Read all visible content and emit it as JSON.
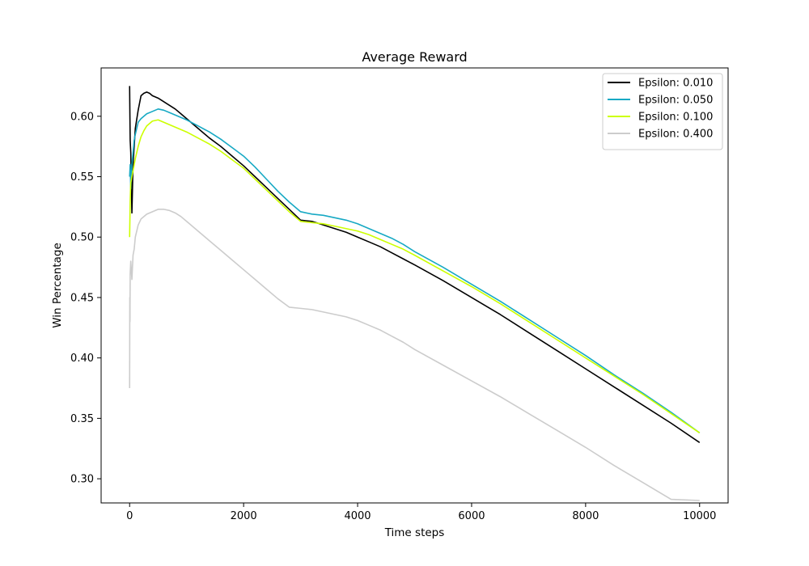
{
  "chart_data": {
    "type": "line",
    "title": "Average Reward",
    "xlabel": "Time steps",
    "ylabel": "Win Percentage",
    "xlim": [
      -500,
      10500
    ],
    "ylim": [
      0.28,
      0.64
    ],
    "xticks": [
      0,
      2000,
      4000,
      6000,
      8000,
      10000
    ],
    "xtick_labels": [
      "0",
      "2000",
      "4000",
      "6000",
      "8000",
      "10000"
    ],
    "yticks": [
      0.3,
      0.35,
      0.4,
      0.45,
      0.5,
      0.55,
      0.6
    ],
    "ytick_labels": [
      "0.30",
      "0.35",
      "0.40",
      "0.45",
      "0.50",
      "0.55",
      "0.60"
    ],
    "grid": false,
    "legend_position": "top-right",
    "series": [
      {
        "name": "Epsilon: 0.010",
        "color": "#000000",
        "x": [
          0,
          5,
          10,
          20,
          40,
          60,
          80,
          100,
          150,
          200,
          250,
          300,
          350,
          400,
          500,
          600,
          700,
          800,
          900,
          1000,
          1200,
          1400,
          1600,
          1800,
          2000,
          2200,
          2400,
          2600,
          2800,
          3000,
          3200,
          3400,
          3600,
          3800,
          4000,
          4200,
          4400,
          4600,
          4800,
          5000,
          5500,
          6000,
          6500,
          7000,
          7500,
          8000,
          8500,
          9000,
          9500,
          10000
        ],
        "y": [
          0.625,
          0.6,
          0.58,
          0.57,
          0.52,
          0.56,
          0.575,
          0.59,
          0.605,
          0.617,
          0.619,
          0.62,
          0.619,
          0.617,
          0.615,
          0.612,
          0.609,
          0.606,
          0.602,
          0.598,
          0.59,
          0.582,
          0.575,
          0.567,
          0.559,
          0.55,
          0.541,
          0.532,
          0.523,
          0.514,
          0.513,
          0.51,
          0.507,
          0.504,
          0.5,
          0.496,
          0.492,
          0.487,
          0.482,
          0.477,
          0.464,
          0.45,
          0.436,
          0.421,
          0.406,
          0.391,
          0.376,
          0.361,
          0.346,
          0.33
        ]
      },
      {
        "name": "Epsilon: 0.050",
        "color": "#17a9c4",
        "x": [
          0,
          10,
          20,
          40,
          60,
          80,
          100,
          150,
          200,
          250,
          300,
          400,
          500,
          600,
          700,
          800,
          900,
          1000,
          1200,
          1400,
          1600,
          1800,
          2000,
          2200,
          2400,
          2600,
          2800,
          3000,
          3200,
          3400,
          3600,
          3800,
          4000,
          4200,
          4400,
          4600,
          4800,
          5000,
          5500,
          6000,
          6500,
          7000,
          7500,
          8000,
          8500,
          9000,
          9500,
          10000
        ],
        "y": [
          0.55,
          0.56,
          0.54,
          0.56,
          0.57,
          0.58,
          0.585,
          0.595,
          0.598,
          0.6,
          0.602,
          0.604,
          0.606,
          0.605,
          0.603,
          0.601,
          0.599,
          0.597,
          0.592,
          0.587,
          0.581,
          0.574,
          0.567,
          0.558,
          0.548,
          0.538,
          0.529,
          0.521,
          0.519,
          0.518,
          0.516,
          0.514,
          0.511,
          0.507,
          0.503,
          0.499,
          0.494,
          0.488,
          0.475,
          0.461,
          0.447,
          0.432,
          0.417,
          0.402,
          0.386,
          0.371,
          0.355,
          0.338
        ]
      },
      {
        "name": "Epsilon: 0.100",
        "color": "#ccff00",
        "x": [
          0,
          10,
          20,
          40,
          60,
          80,
          100,
          150,
          200,
          250,
          300,
          400,
          500,
          600,
          700,
          800,
          900,
          1000,
          1200,
          1400,
          1600,
          1800,
          2000,
          2200,
          2400,
          2600,
          2800,
          3000,
          3200,
          3400,
          3600,
          3800,
          4000,
          4200,
          4400,
          4600,
          4800,
          5000,
          5500,
          6000,
          6500,
          7000,
          7500,
          8000,
          8500,
          9000,
          9500,
          10000
        ],
        "y": [
          0.5,
          0.53,
          0.545,
          0.55,
          0.555,
          0.56,
          0.565,
          0.575,
          0.583,
          0.588,
          0.592,
          0.596,
          0.597,
          0.595,
          0.593,
          0.591,
          0.589,
          0.587,
          0.582,
          0.577,
          0.571,
          0.564,
          0.557,
          0.548,
          0.539,
          0.53,
          0.521,
          0.513,
          0.512,
          0.511,
          0.509,
          0.507,
          0.505,
          0.502,
          0.498,
          0.494,
          0.49,
          0.485,
          0.472,
          0.459,
          0.445,
          0.43,
          0.415,
          0.4,
          0.385,
          0.37,
          0.354,
          0.338
        ]
      },
      {
        "name": "Epsilon: 0.400",
        "color": "#cccccc",
        "x": [
          0,
          3,
          6,
          10,
          20,
          40,
          60,
          80,
          100,
          150,
          200,
          300,
          400,
          500,
          600,
          700,
          800,
          900,
          1000,
          1200,
          1400,
          1600,
          1800,
          2000,
          2200,
          2400,
          2600,
          2800,
          3000,
          3200,
          3400,
          3600,
          3800,
          4000,
          4200,
          4400,
          4600,
          4800,
          5000,
          5500,
          6000,
          6500,
          7000,
          7500,
          8000,
          8500,
          9000,
          9500,
          10000
        ],
        "y": [
          0.375,
          0.45,
          0.43,
          0.47,
          0.48,
          0.465,
          0.485,
          0.49,
          0.5,
          0.51,
          0.515,
          0.519,
          0.521,
          0.523,
          0.523,
          0.522,
          0.52,
          0.517,
          0.513,
          0.505,
          0.497,
          0.489,
          0.481,
          0.473,
          0.465,
          0.457,
          0.449,
          0.442,
          0.441,
          0.44,
          0.438,
          0.436,
          0.434,
          0.431,
          0.427,
          0.423,
          0.418,
          0.413,
          0.407,
          0.394,
          0.381,
          0.368,
          0.354,
          0.34,
          0.326,
          0.311,
          0.297,
          0.283,
          0.282
        ]
      }
    ]
  }
}
